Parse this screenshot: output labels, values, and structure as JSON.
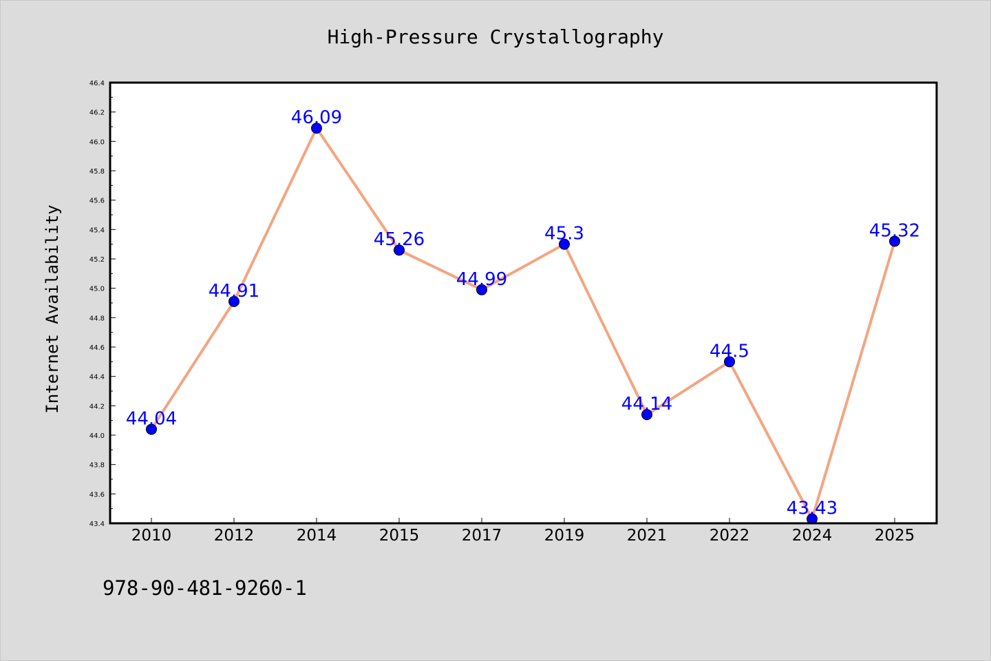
{
  "chart_data": {
    "type": "line",
    "title": "High-Pressure Crystallography",
    "xlabel": "",
    "ylabel": "Internet Availability",
    "categories": [
      "2010",
      "2012",
      "2014",
      "2015",
      "2017",
      "2019",
      "2021",
      "2022",
      "2024",
      "2025"
    ],
    "series": [
      {
        "values": [
          44.04,
          44.91,
          46.09,
          45.26,
          44.99,
          45.3,
          44.14,
          44.5,
          43.43,
          45.32
        ],
        "labels": [
          "44.04",
          "44.91",
          "46.09",
          "45.26",
          "44.99",
          "45.3",
          "44.14",
          "44.5",
          "43.43",
          "45.32"
        ]
      }
    ],
    "ylim": [
      43.4,
      46.4
    ],
    "yticks": [
      "43.4",
      "43.6",
      "43.8",
      "44.0",
      "44.2",
      "44.4",
      "44.6",
      "44.8",
      "45.0",
      "45.2",
      "45.4",
      "45.6",
      "45.8",
      "46.0",
      "46.2",
      "46.4"
    ],
    "grid": false,
    "legend": "none",
    "colors": {
      "line": "#f4a582",
      "marker": "#0000ff",
      "data_label": "#0000ff",
      "plot_background": "#ffffff",
      "figure_background": "#dcdcdc"
    }
  },
  "footnote": "978-90-481-9260-1"
}
